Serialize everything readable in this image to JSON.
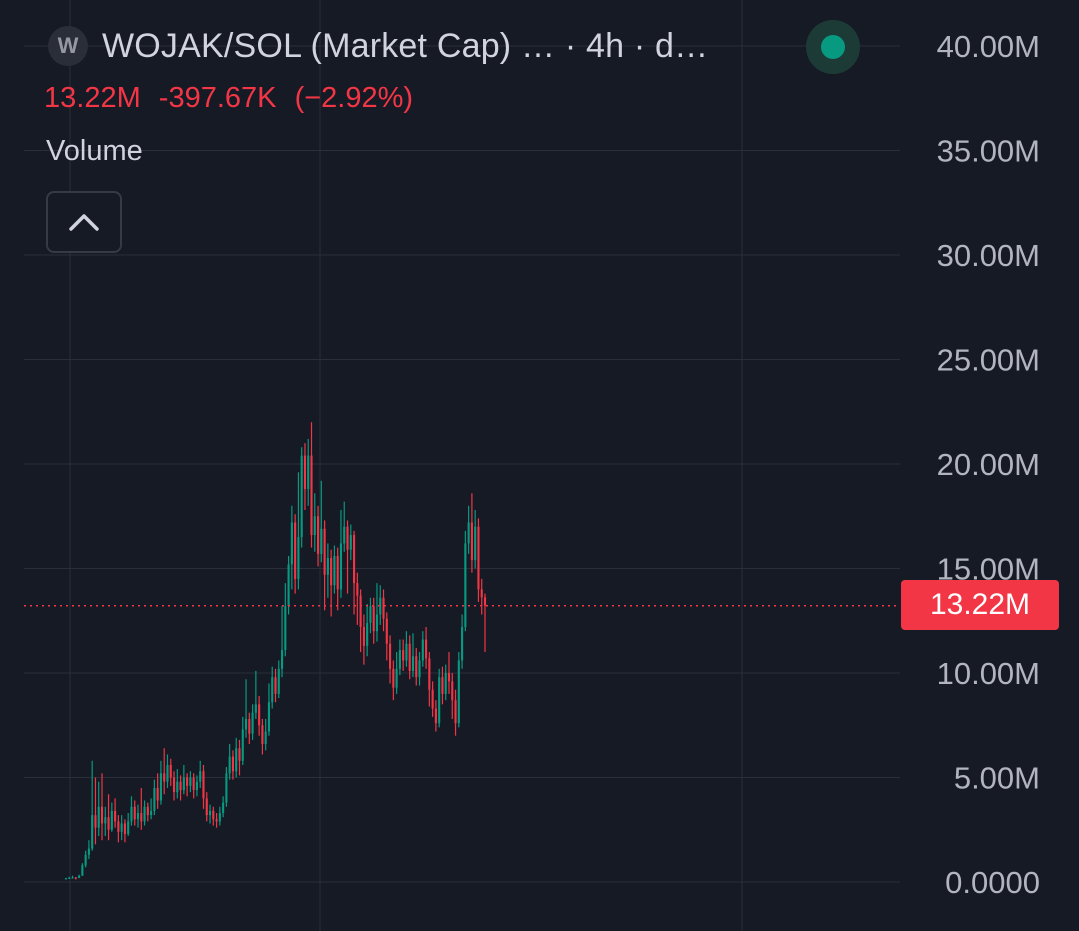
{
  "header": {
    "symbol_icon": "W",
    "title": "WOJAK/SOL (Market Cap) … · 4h · d…",
    "status": "connected-dot-icon"
  },
  "ohlc": {
    "close": "13.22M",
    "change": "-397.67K",
    "change_pct": "(−2.92%)"
  },
  "volume": {
    "label": "Volume",
    "toggle_icon": "chevron-up-icon"
  },
  "last_price_tag": "13.22M",
  "colors": {
    "background": "#161a25",
    "up": "#089981",
    "down": "#f23645",
    "grid": "#2a2e39",
    "text": "#d1d4dc"
  },
  "chart_data": {
    "type": "candlestick",
    "series_unit": "market cap",
    "ylim": [
      0,
      40000000
    ],
    "y_ticks": [
      "40.00M",
      "35.00M",
      "30.00M",
      "25.00M",
      "20.00M",
      "15.00M",
      "10.00M",
      "5.00M",
      "0.0000"
    ],
    "y_tick_values": [
      40000000,
      35000000,
      30000000,
      25000000,
      20000000,
      15000000,
      10000000,
      5000000,
      0
    ],
    "last_price": 13220000,
    "candles": [
      [
        0.15,
        0.18,
        0.12,
        0.2
      ],
      [
        0.18,
        0.2,
        0.15,
        0.25
      ],
      [
        0.2,
        0.22,
        0.18,
        0.3
      ],
      [
        0.22,
        0.2,
        0.12,
        0.24
      ],
      [
        0.2,
        0.3,
        0.18,
        0.35
      ],
      [
        0.3,
        0.8,
        0.3,
        0.9
      ],
      [
        0.8,
        1.3,
        0.7,
        1.5
      ],
      [
        1.3,
        1.6,
        1.1,
        2.0
      ],
      [
        1.6,
        3.2,
        1.5,
        5.8
      ],
      [
        3.2,
        2.6,
        1.8,
        5.0
      ],
      [
        2.6,
        3.6,
        2.2,
        4.8
      ],
      [
        3.6,
        2.8,
        2.0,
        5.2
      ],
      [
        2.8,
        3.1,
        2.2,
        3.6
      ],
      [
        3.1,
        2.5,
        2.0,
        4.2
      ],
      [
        2.5,
        3.4,
        2.4,
        3.8
      ],
      [
        3.4,
        2.9,
        2.6,
        4.0
      ],
      [
        2.9,
        2.4,
        1.9,
        3.2
      ],
      [
        2.4,
        2.8,
        2.0,
        3.2
      ],
      [
        2.8,
        2.3,
        1.9,
        3.0
      ],
      [
        2.3,
        2.9,
        2.2,
        3.3
      ],
      [
        2.9,
        3.6,
        2.7,
        4.1
      ],
      [
        3.6,
        3.0,
        2.7,
        3.9
      ],
      [
        3.0,
        3.3,
        2.6,
        3.7
      ],
      [
        3.3,
        2.9,
        2.5,
        4.5
      ],
      [
        2.9,
        3.6,
        2.7,
        3.9
      ],
      [
        3.6,
        3.2,
        2.9,
        3.8
      ],
      [
        3.2,
        3.4,
        3.0,
        4.0
      ],
      [
        3.4,
        4.5,
        3.2,
        4.9
      ],
      [
        4.5,
        3.9,
        3.5,
        5.2
      ],
      [
        3.9,
        5.2,
        3.7,
        5.8
      ],
      [
        5.2,
        4.8,
        4.2,
        6.4
      ],
      [
        4.8,
        5.6,
        4.5,
        6.1
      ],
      [
        5.6,
        5.0,
        4.6,
        5.9
      ],
      [
        5.0,
        4.3,
        3.9,
        5.3
      ],
      [
        4.3,
        4.8,
        4.0,
        5.4
      ],
      [
        4.8,
        4.4,
        3.9,
        5.1
      ],
      [
        4.4,
        5.0,
        4.2,
        5.6
      ],
      [
        5.0,
        4.6,
        4.1,
        5.2
      ],
      [
        4.6,
        5.0,
        4.3,
        5.3
      ],
      [
        5.0,
        4.4,
        4.0,
        5.2
      ],
      [
        4.4,
        4.8,
        4.1,
        5.1
      ],
      [
        4.8,
        5.3,
        4.5,
        5.8
      ],
      [
        5.3,
        4.0,
        3.5,
        5.6
      ],
      [
        4.0,
        3.2,
        2.9,
        4.3
      ],
      [
        3.2,
        3.4,
        2.8,
        3.7
      ],
      [
        3.4,
        3.0,
        2.7,
        3.6
      ],
      [
        3.0,
        2.9,
        2.6,
        3.3
      ],
      [
        2.9,
        3.3,
        2.7,
        3.6
      ],
      [
        3.3,
        3.8,
        3.1,
        4.1
      ],
      [
        3.8,
        5.2,
        3.6,
        5.5
      ],
      [
        5.2,
        6.0,
        4.9,
        6.6
      ],
      [
        6.0,
        5.3,
        4.9,
        6.3
      ],
      [
        5.3,
        6.4,
        5.0,
        6.9
      ],
      [
        6.4,
        5.8,
        5.1,
        6.8
      ],
      [
        5.8,
        7.3,
        5.6,
        7.9
      ],
      [
        7.3,
        7.8,
        6.9,
        9.7
      ],
      [
        7.8,
        7.1,
        6.6,
        8.1
      ],
      [
        7.1,
        8.1,
        6.8,
        8.5
      ],
      [
        8.1,
        8.5,
        7.8,
        10.1
      ],
      [
        8.5,
        7.5,
        7.0,
        8.9
      ],
      [
        7.5,
        6.6,
        6.1,
        7.8
      ],
      [
        6.6,
        7.2,
        6.3,
        7.8
      ],
      [
        7.2,
        8.6,
        7.0,
        9.5
      ],
      [
        8.6,
        9.8,
        8.3,
        10.3
      ],
      [
        9.8,
        9.0,
        8.6,
        10.2
      ],
      [
        9.0,
        10.2,
        8.8,
        10.6
      ],
      [
        10.2,
        11.1,
        9.8,
        13.2
      ],
      [
        11.1,
        13.2,
        10.8,
        14.3
      ],
      [
        13.2,
        15.2,
        12.8,
        15.6
      ],
      [
        15.2,
        17.2,
        14.0,
        18.0
      ],
      [
        17.2,
        14.5,
        13.8,
        17.6
      ],
      [
        14.5,
        16.5,
        14.0,
        19.6
      ],
      [
        16.5,
        20.4,
        16.0,
        20.8
      ],
      [
        20.4,
        18.8,
        17.8,
        21.0
      ],
      [
        18.8,
        20.4,
        18.0,
        21.2
      ],
      [
        20.4,
        16.6,
        16.0,
        22.0
      ],
      [
        16.6,
        17.5,
        15.8,
        18.6
      ],
      [
        17.5,
        15.7,
        15.1,
        18.0
      ],
      [
        15.7,
        16.9,
        15.3,
        19.2
      ],
      [
        16.9,
        14.7,
        13.0,
        17.3
      ],
      [
        14.7,
        15.5,
        13.6,
        16.2
      ],
      [
        15.5,
        14.2,
        12.7,
        15.9
      ],
      [
        14.2,
        15.6,
        13.8,
        16.1
      ],
      [
        15.6,
        14.0,
        13.0,
        16.0
      ],
      [
        14.0,
        16.2,
        13.6,
        17.8
      ],
      [
        16.2,
        17.0,
        15.8,
        18.2
      ],
      [
        17.0,
        15.9,
        13.8,
        17.3
      ],
      [
        15.9,
        16.6,
        15.4,
        17.1
      ],
      [
        16.6,
        14.3,
        12.8,
        16.8
      ],
      [
        14.3,
        13.7,
        12.3,
        14.8
      ],
      [
        13.7,
        12.2,
        11.0,
        14.0
      ],
      [
        12.2,
        11.3,
        10.4,
        12.8
      ],
      [
        11.3,
        12.4,
        10.8,
        13.3
      ],
      [
        12.4,
        13.2,
        11.9,
        13.6
      ],
      [
        13.2,
        12.0,
        11.4,
        13.6
      ],
      [
        12.0,
        12.8,
        11.5,
        14.3
      ],
      [
        12.8,
        13.6,
        12.3,
        14.2
      ],
      [
        13.6,
        12.6,
        12.0,
        14.0
      ],
      [
        12.6,
        11.4,
        10.6,
        12.9
      ],
      [
        11.4,
        10.2,
        9.5,
        11.8
      ],
      [
        10.2,
        9.3,
        8.7,
        10.6
      ],
      [
        9.3,
        10.2,
        9.0,
        11.0
      ],
      [
        10.2,
        11.1,
        9.9,
        11.6
      ],
      [
        11.1,
        10.6,
        10.1,
        11.6
      ],
      [
        10.6,
        11.4,
        10.3,
        12.0
      ],
      [
        11.4,
        10.1,
        9.7,
        11.8
      ],
      [
        10.1,
        10.8,
        9.8,
        11.9
      ],
      [
        10.8,
        9.8,
        9.4,
        11.2
      ],
      [
        9.8,
        10.6,
        9.4,
        11.0
      ],
      [
        10.6,
        11.6,
        10.3,
        12.0
      ],
      [
        11.6,
        10.7,
        10.2,
        12.2
      ],
      [
        10.7,
        9.2,
        8.4,
        11.0
      ],
      [
        9.2,
        8.3,
        7.9,
        9.6
      ],
      [
        8.3,
        7.6,
        7.2,
        8.7
      ],
      [
        7.6,
        9.8,
        7.4,
        10.2
      ],
      [
        9.8,
        9.0,
        8.5,
        10.3
      ],
      [
        9.0,
        10.0,
        8.7,
        10.4
      ],
      [
        10.0,
        9.6,
        9.0,
        11.0
      ],
      [
        9.6,
        8.7,
        7.8,
        10.0
      ],
      [
        8.7,
        7.6,
        7.0,
        9.2
      ],
      [
        7.6,
        10.6,
        7.4,
        11.0
      ],
      [
        10.6,
        12.2,
        10.2,
        12.8
      ],
      [
        12.2,
        16.2,
        12.0,
        16.8
      ],
      [
        16.2,
        17.2,
        15.7,
        18.0
      ],
      [
        17.2,
        15.4,
        14.8,
        18.6
      ],
      [
        15.4,
        17.0,
        15.0,
        17.8
      ],
      [
        17.0,
        14.0,
        13.4,
        17.4
      ],
      [
        14.0,
        13.62,
        12.8,
        14.5
      ],
      [
        13.62,
        13.22,
        11.0,
        13.8
      ]
    ]
  }
}
